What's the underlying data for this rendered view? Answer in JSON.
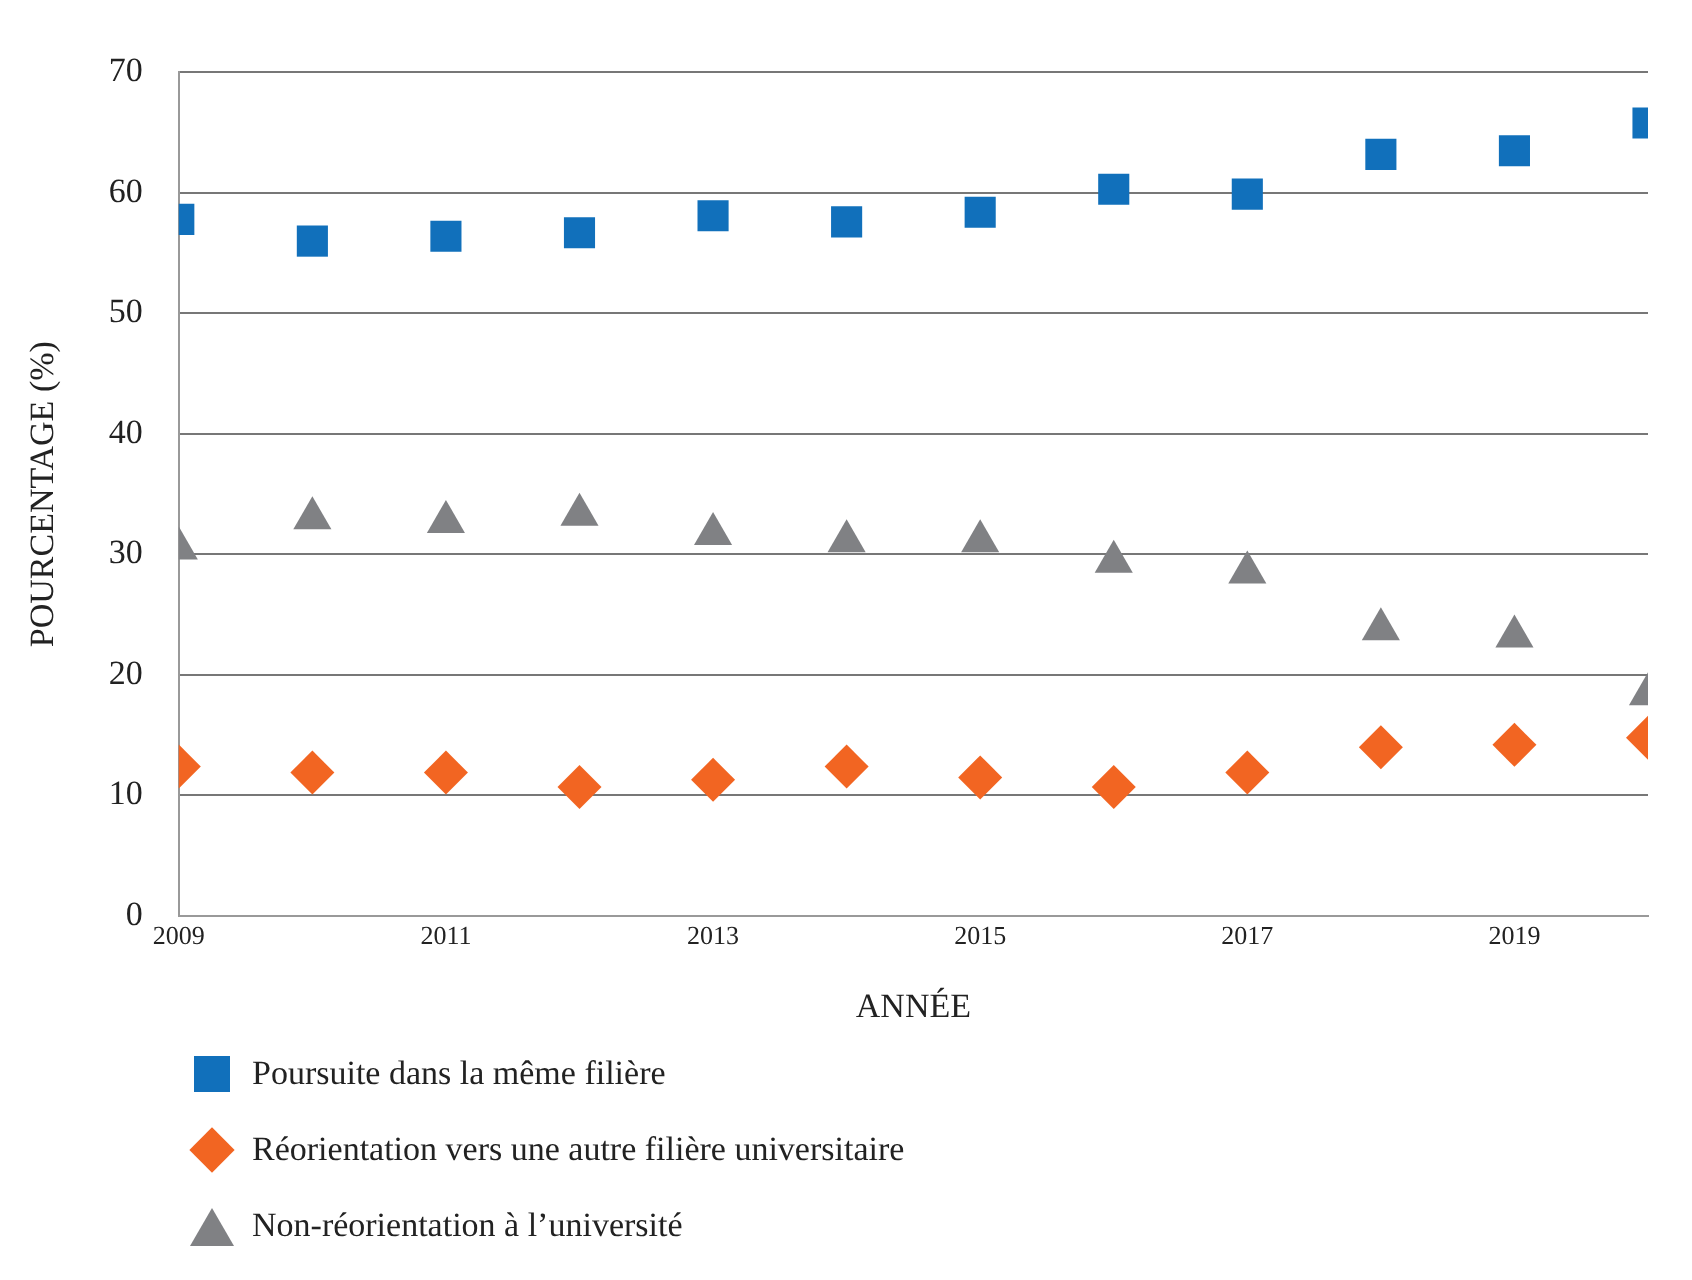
{
  "chart_data": {
    "type": "scatter",
    "xlabel": "ANNÉE",
    "ylabel": "POURCENTAGE (%)",
    "x": [
      2009,
      2010,
      2011,
      2012,
      2013,
      2014,
      2015,
      2016,
      2017,
      2018,
      2019,
      2020
    ],
    "xlim": [
      2009,
      2020
    ],
    "xticks": [
      2009,
      2011,
      2013,
      2015,
      2017,
      2019
    ],
    "ylim": [
      0,
      70
    ],
    "yticks": [
      0,
      10,
      20,
      30,
      40,
      50,
      60,
      70
    ],
    "grid": "y",
    "legend": "bottom left",
    "series": [
      {
        "name": "Poursuite dans la même filière",
        "color": "#1170bb",
        "marker": "square",
        "values": [
          57.8,
          56.0,
          56.4,
          56.7,
          58.1,
          57.6,
          58.4,
          60.3,
          59.9,
          63.2,
          63.5,
          65.8
        ]
      },
      {
        "name": "Réorientation vers une autre filière universitaire",
        "color": "#f26522",
        "marker": "diamond",
        "values": [
          12.4,
          11.9,
          11.9,
          10.7,
          11.3,
          12.4,
          11.5,
          10.7,
          11.9,
          14.0,
          14.2,
          14.8
        ]
      },
      {
        "name": "Non-réorientation à l’université",
        "color": "#808184",
        "marker": "triangle",
        "values": [
          30.5,
          33.0,
          32.7,
          33.3,
          31.7,
          31.1,
          31.1,
          29.4,
          28.5,
          23.8,
          23.2,
          18.4
        ]
      }
    ]
  }
}
